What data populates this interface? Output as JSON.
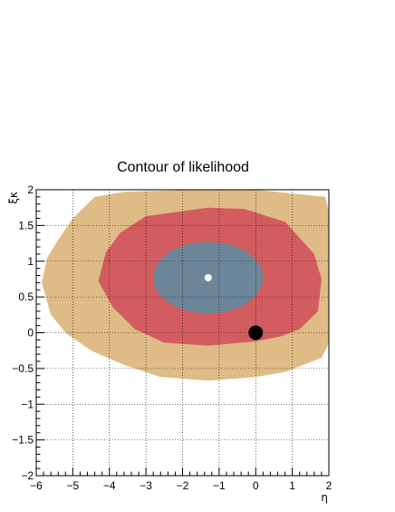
{
  "chart_data": {
    "type": "contour",
    "title": "Contour of likelihood",
    "xlabel": "η",
    "ylabel": "ξκ",
    "xlim": [
      -6,
      2
    ],
    "ylim": [
      -2,
      2
    ],
    "grid": true,
    "xticks": [
      -6,
      -5,
      -4,
      -3,
      -2,
      -1,
      0,
      1,
      2
    ],
    "yticks": [
      -2,
      -1.5,
      -1,
      -0.5,
      0,
      0.5,
      1,
      1.5,
      2
    ],
    "xtick_labels": [
      "−6",
      "−5",
      "−4",
      "−3",
      "−2",
      "−1",
      "0",
      "1",
      "2"
    ],
    "ytick_labels": [
      "−2",
      "−1.5",
      "−1",
      "−0.5",
      "0",
      "0.5",
      "1",
      "1.5",
      "2"
    ],
    "contours": [
      {
        "level": "outer",
        "color": "#dfbb86",
        "points": [
          [
            -4.4,
            1.9
          ],
          [
            -3.6,
            1.97
          ],
          [
            -1.8,
            2.0
          ],
          [
            0,
            2.0
          ],
          [
            1.9,
            1.9
          ],
          [
            2.0,
            1.7
          ],
          [
            2.0,
            -0.15
          ],
          [
            1.8,
            -0.35
          ],
          [
            0.8,
            -0.55
          ],
          [
            0,
            -0.62
          ],
          [
            -1.3,
            -0.67
          ],
          [
            -2.6,
            -0.62
          ],
          [
            -3.6,
            -0.45
          ],
          [
            -4.5,
            -0.25
          ],
          [
            -5.2,
            0.0
          ],
          [
            -5.6,
            0.25
          ],
          [
            -5.85,
            0.7
          ],
          [
            -5.7,
            1.05
          ],
          [
            -5.4,
            1.3
          ],
          [
            -5.0,
            1.6
          ]
        ]
      },
      {
        "level": "middle",
        "color": "#d25c5f",
        "points": [
          [
            -3.0,
            1.63
          ],
          [
            -1.3,
            1.75
          ],
          [
            -0.3,
            1.73
          ],
          [
            0.8,
            1.55
          ],
          [
            1.6,
            1.1
          ],
          [
            1.8,
            0.75
          ],
          [
            1.7,
            0.3
          ],
          [
            1.2,
            0.05
          ],
          [
            0.7,
            -0.05
          ],
          [
            0,
            -0.12
          ],
          [
            -1.3,
            -0.18
          ],
          [
            -2.5,
            -0.14
          ],
          [
            -3.3,
            0.05
          ],
          [
            -3.9,
            0.35
          ],
          [
            -4.3,
            0.72
          ],
          [
            -4.1,
            1.12
          ],
          [
            -3.7,
            1.4
          ]
        ]
      },
      {
        "level": "inner",
        "type": "ellipse",
        "color": "#6e869a",
        "center": [
          -1.3,
          0.77
        ],
        "rx": 1.5,
        "ry": 0.5
      }
    ],
    "points": [
      {
        "name": "best-fit",
        "x": -1.3,
        "y": 0.77,
        "color": "#ffffff",
        "size": 4
      },
      {
        "name": "reference",
        "x": 0,
        "y": 0,
        "color": "#000000",
        "size": 8
      }
    ]
  }
}
